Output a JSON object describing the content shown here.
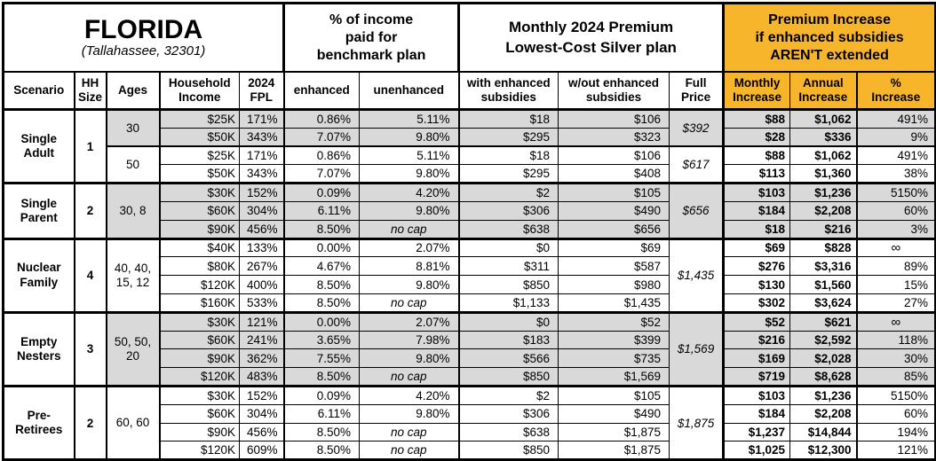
{
  "colors": {
    "accent_orange": "#F7B52C",
    "shaded_gray": "#D9D9D9",
    "border": "#000000"
  },
  "title_block": {
    "title": "FLORIDA",
    "subtitle": "(Tallahassee, 32301)"
  },
  "group_headers": {
    "benchmark": "% of income\npaid for\nbenchmark plan",
    "premium": "Monthly 2024 Premium\nLowest-Cost Silver plan",
    "increase": "Premium Increase\nif enhanced subsidies\nAREN'T extended"
  },
  "column_headers": {
    "scenario": "Scenario",
    "hh_size": "HH\nSize",
    "ages": "Ages",
    "income": "Household\nIncome",
    "fpl": "2024\nFPL",
    "enhanced": "enhanced",
    "unenhanced": "unenhanced",
    "with_subsidies": "with enhanced\nsubsidies",
    "wout_subsidies": "w/out enhanced\nsubsidies",
    "full_price": "Full\nPrice",
    "monthly_increase": "Monthly\nIncrease",
    "annual_increase": "Annual\nIncrease",
    "pct_increase": "%\nIncrease"
  },
  "row_columns": [
    "income",
    "fpl",
    "enhanced",
    "unenhanced",
    "with_subsidies",
    "wout_subsidies",
    "monthly_increase",
    "annual_increase",
    "pct_increase"
  ],
  "sections": [
    {
      "scenario": "Single\nAdult",
      "hh_size": "1",
      "subgroups": [
        {
          "ages": "30",
          "full_price": "$392",
          "shaded": true,
          "rows": [
            [
              "$25K",
              "171%",
              "0.86%",
              "5.11%",
              "$18",
              "$106",
              "$88",
              "$1,062",
              "491%"
            ],
            [
              "$50K",
              "343%",
              "7.07%",
              "9.80%",
              "$295",
              "$323",
              "$28",
              "$336",
              "9%"
            ]
          ]
        },
        {
          "ages": "50",
          "full_price": "$617",
          "shaded": false,
          "rows": [
            [
              "$25K",
              "171%",
              "0.86%",
              "5.11%",
              "$18",
              "$106",
              "$88",
              "$1,062",
              "491%"
            ],
            [
              "$50K",
              "343%",
              "7.07%",
              "9.80%",
              "$295",
              "$408",
              "$113",
              "$1,360",
              "38%"
            ]
          ]
        }
      ]
    },
    {
      "scenario": "Single\nParent",
      "hh_size": "2",
      "subgroups": [
        {
          "ages": "30, 8",
          "full_price": "$656",
          "shaded": true,
          "rows": [
            [
              "$30K",
              "152%",
              "0.09%",
              "4.20%",
              "$2",
              "$105",
              "$103",
              "$1,236",
              "5150%"
            ],
            [
              "$60K",
              "304%",
              "6.11%",
              "9.80%",
              "$306",
              "$490",
              "$184",
              "$2,208",
              "60%"
            ],
            [
              "$90K",
              "456%",
              "8.50%",
              "no cap",
              "$638",
              "$656",
              "$18",
              "$216",
              "3%"
            ]
          ]
        }
      ]
    },
    {
      "scenario": "Nuclear\nFamily",
      "hh_size": "4",
      "subgroups": [
        {
          "ages": "40, 40,\n15, 12",
          "full_price": "$1,435",
          "shaded": false,
          "rows": [
            [
              "$40K",
              "133%",
              "0.00%",
              "2.07%",
              "$0",
              "$69",
              "$69",
              "$828",
              "∞"
            ],
            [
              "$80K",
              "267%",
              "4.67%",
              "8.81%",
              "$311",
              "$587",
              "$276",
              "$3,316",
              "89%"
            ],
            [
              "$120K",
              "400%",
              "8.50%",
              "9.80%",
              "$850",
              "$980",
              "$130",
              "$1,560",
              "15%"
            ],
            [
              "$160K",
              "533%",
              "8.50%",
              "no cap",
              "$1,133",
              "$1,435",
              "$302",
              "$3,624",
              "27%"
            ]
          ]
        }
      ]
    },
    {
      "scenario": "Empty\nNesters",
      "hh_size": "3",
      "subgroups": [
        {
          "ages": "50, 50,\n20",
          "full_price": "$1,569",
          "shaded": true,
          "rows": [
            [
              "$30K",
              "121%",
              "0.00%",
              "2.07%",
              "$0",
              "$52",
              "$52",
              "$621",
              "∞"
            ],
            [
              "$60K",
              "241%",
              "3.65%",
              "7.98%",
              "$183",
              "$399",
              "$216",
              "$2,592",
              "118%"
            ],
            [
              "$90K",
              "362%",
              "7.55%",
              "9.80%",
              "$566",
              "$735",
              "$169",
              "$2,028",
              "30%"
            ],
            [
              "$120K",
              "483%",
              "8.50%",
              "no cap",
              "$850",
              "$1,569",
              "$719",
              "$8,628",
              "85%"
            ]
          ]
        }
      ]
    },
    {
      "scenario": "Pre-\nRetirees",
      "hh_size": "2",
      "subgroups": [
        {
          "ages": "60, 60",
          "full_price": "$1,875",
          "shaded": false,
          "rows": [
            [
              "$30K",
              "152%",
              "0.09%",
              "4.20%",
              "$2",
              "$105",
              "$103",
              "$1,236",
              "5150%"
            ],
            [
              "$60K",
              "304%",
              "6.11%",
              "9.80%",
              "$306",
              "$490",
              "$184",
              "$2,208",
              "60%"
            ],
            [
              "$90K",
              "456%",
              "8.50%",
              "no cap",
              "$638",
              "$1,875",
              "$1,237",
              "$14,844",
              "194%"
            ],
            [
              "$120K",
              "609%",
              "8.50%",
              "no cap",
              "$850",
              "$1,875",
              "$1,025",
              "$12,300",
              "121%"
            ]
          ]
        }
      ]
    }
  ]
}
